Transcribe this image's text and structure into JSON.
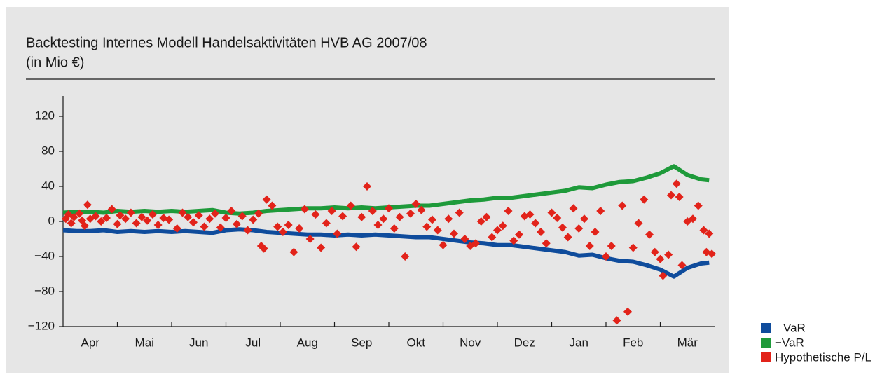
{
  "chart_data": {
    "type": "line",
    "title": "Backtesting Internes Modell Handelsaktivitäten HVB AG 2007/08",
    "subtitle": "(in Mio €)",
    "categories": [
      "Apr",
      "Mai",
      "Jun",
      "Jul",
      "Aug",
      "Sep",
      "Okt",
      "Nov",
      "Dez",
      "Jan",
      "Feb",
      "Mär"
    ],
    "xlim": [
      0,
      12
    ],
    "ylim": [
      -120,
      140
    ],
    "yticks": [
      120,
      80,
      40,
      0,
      {
        "value": -40,
        "label": "−40"
      },
      {
        "value": -80,
        "label": "−80"
      },
      {
        "value": -120,
        "label": "−120"
      }
    ],
    "series": [
      {
        "name": "VaR",
        "type": "line",
        "color": "#0f4c9c",
        "x": [
          0,
          0.25,
          0.5,
          0.75,
          1,
          1.25,
          1.5,
          1.75,
          2,
          2.25,
          2.5,
          2.75,
          3,
          3.25,
          3.5,
          3.75,
          4,
          4.25,
          4.5,
          4.75,
          5,
          5.25,
          5.5,
          5.75,
          6,
          6.25,
          6.5,
          6.75,
          7,
          7.25,
          7.5,
          7.75,
          8,
          8.25,
          8.5,
          8.75,
          9,
          9.25,
          9.5,
          9.75,
          10,
          10.25,
          10.5,
          10.75,
          11,
          11.25,
          11.5,
          11.75,
          11.9
        ],
        "values": [
          -10,
          -11,
          -11,
          -10,
          -12,
          -11,
          -12,
          -11,
          -12,
          -11,
          -12,
          -13,
          -10,
          -9,
          -10,
          -12,
          -13,
          -14,
          -15,
          -15,
          -16,
          -15,
          -16,
          -15,
          -16,
          -17,
          -18,
          -18,
          -20,
          -22,
          -24,
          -25,
          -27,
          -27,
          -29,
          -31,
          -33,
          -35,
          -39,
          -38,
          -42,
          -45,
          -46,
          -50,
          -55,
          -63,
          -53,
          -48,
          -47
        ]
      },
      {
        "name": "−VaR",
        "type": "line",
        "color": "#1e9a3a",
        "x": [
          0,
          0.25,
          0.5,
          0.75,
          1,
          1.25,
          1.5,
          1.75,
          2,
          2.25,
          2.5,
          2.75,
          3,
          3.25,
          3.5,
          3.75,
          4,
          4.25,
          4.5,
          4.75,
          5,
          5.25,
          5.5,
          5.75,
          6,
          6.25,
          6.5,
          6.75,
          7,
          7.25,
          7.5,
          7.75,
          8,
          8.25,
          8.5,
          8.75,
          9,
          9.25,
          9.5,
          9.75,
          10,
          10.25,
          10.5,
          10.75,
          11,
          11.25,
          11.5,
          11.75,
          11.9
        ],
        "values": [
          10,
          11,
          11,
          10,
          12,
          11,
          12,
          11,
          12,
          11,
          12,
          13,
          10,
          9,
          10,
          12,
          13,
          14,
          15,
          15,
          16,
          15,
          16,
          15,
          16,
          17,
          18,
          18,
          20,
          22,
          24,
          25,
          27,
          27,
          29,
          31,
          33,
          35,
          39,
          38,
          42,
          45,
          46,
          50,
          55,
          63,
          53,
          48,
          47
        ]
      },
      {
        "name": "Hypothetische P/L",
        "type": "scatter",
        "color": "#e2231a",
        "x": [
          0.05,
          0.1,
          0.15,
          0.2,
          0.3,
          0.35,
          0.4,
          0.45,
          0.5,
          0.6,
          0.7,
          0.8,
          0.9,
          1.0,
          1.05,
          1.15,
          1.25,
          1.35,
          1.45,
          1.55,
          1.65,
          1.75,
          1.85,
          1.95,
          2.1,
          2.2,
          2.3,
          2.4,
          2.5,
          2.6,
          2.7,
          2.8,
          2.9,
          3.0,
          3.1,
          3.2,
          3.3,
          3.4,
          3.5,
          3.6,
          3.65,
          3.7,
          3.75,
          3.85,
          3.95,
          4.05,
          4.15,
          4.25,
          4.35,
          4.45,
          4.55,
          4.65,
          4.75,
          4.85,
          4.95,
          5.05,
          5.15,
          5.3,
          5.4,
          5.5,
          5.6,
          5.7,
          5.8,
          5.9,
          6.0,
          6.1,
          6.2,
          6.3,
          6.4,
          6.5,
          6.6,
          6.7,
          6.8,
          6.9,
          7.0,
          7.1,
          7.2,
          7.3,
          7.4,
          7.5,
          7.6,
          7.7,
          7.8,
          7.9,
          8.0,
          8.1,
          8.2,
          8.3,
          8.4,
          8.5,
          8.6,
          8.7,
          8.8,
          8.9,
          9.0,
          9.1,
          9.2,
          9.3,
          9.4,
          9.5,
          9.6,
          9.7,
          9.8,
          9.9,
          10.0,
          10.1,
          10.2,
          10.3,
          10.4,
          10.5,
          10.6,
          10.7,
          10.8,
          10.9,
          11.0,
          11.05,
          11.15,
          11.2,
          11.3,
          11.35,
          11.4,
          11.5,
          11.6,
          11.7,
          11.8,
          11.85,
          11.9,
          11.95
        ],
        "values": [
          3,
          8,
          -2,
          5,
          9,
          1,
          -5,
          19,
          3,
          6,
          0,
          4,
          14,
          -3,
          7,
          3,
          10,
          -2,
          5,
          1,
          8,
          -4,
          4,
          2,
          -8,
          10,
          5,
          -1,
          7,
          -6,
          3,
          9,
          -7,
          4,
          12,
          -3,
          6,
          -10,
          2,
          9,
          -28,
          -31,
          25,
          18,
          -6,
          -12,
          -4,
          -35,
          -8,
          14,
          -20,
          8,
          -30,
          -2,
          12,
          -14,
          6,
          18,
          -29,
          5,
          40,
          12,
          -4,
          3,
          15,
          -8,
          5,
          -40,
          9,
          20,
          13,
          -6,
          2,
          -10,
          -27,
          3,
          -14,
          10,
          -20,
          -28,
          -25,
          0,
          5,
          -18,
          -10,
          -5,
          12,
          -22,
          -15,
          6,
          8,
          -2,
          -12,
          -25,
          10,
          4,
          -7,
          -18,
          15,
          -8,
          3,
          -28,
          -12,
          12,
          -40,
          -28,
          -113,
          18,
          -103,
          -30,
          -2,
          25,
          -15,
          -35,
          -43,
          -62,
          -38,
          30,
          43,
          28,
          -50,
          0,
          3,
          18,
          -10,
          -35,
          -14,
          -37
        ]
      }
    ]
  }
}
